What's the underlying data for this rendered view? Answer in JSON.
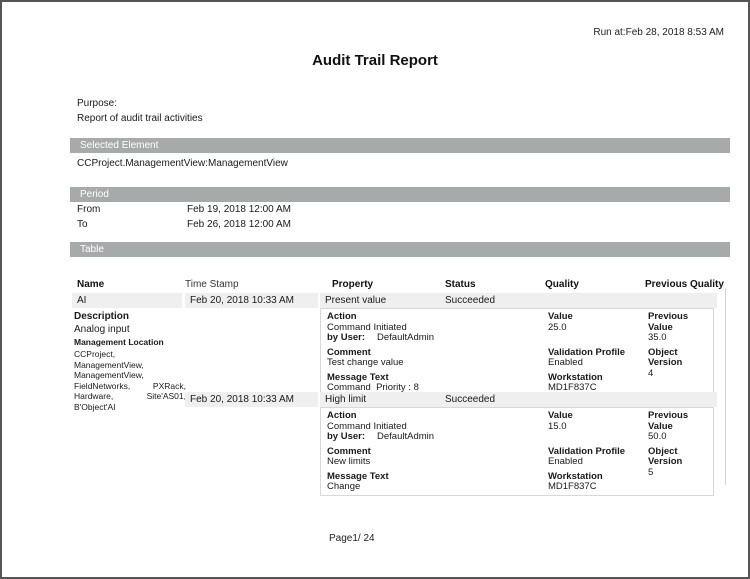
{
  "header": {
    "run_at": "Run at:Feb 28, 2018 8:53 AM",
    "title": "Audit Trail Report"
  },
  "purpose": {
    "label": "Purpose:",
    "text": "Report of audit trail activities"
  },
  "sections": {
    "selected_element": "Selected Element",
    "period": "Period",
    "table": "Table"
  },
  "selected_element_value": "CCProject.ManagementView:ManagementView",
  "period": {
    "from_label": "From",
    "from_value": "Feb 19, 2018 12:00 AM",
    "to_label": "To",
    "to_value": "Feb 26, 2018 12:00 AM"
  },
  "table": {
    "columns": {
      "name": "Name",
      "time_stamp": "Time Stamp",
      "property": "Property",
      "status": "Status",
      "quality": "Quality",
      "previous_quality": "Previous Quality"
    },
    "row": {
      "name": "AI",
      "description_label": "Description",
      "description": "Analog input",
      "management_location_label": "Management Location",
      "management_location": "CCProject, ManagementView, ManagementView, FieldNetworks, PXRack, Hardware, Site'AS01, B'Object'AI",
      "entries": [
        {
          "timestamp": "Feb 20, 2018 10:33 AM",
          "property": "Present value",
          "status": "Succeeded",
          "action_label": "Action",
          "action": "Command Initiated",
          "by_user_label": "by User:",
          "by_user": "DefaultAdmin",
          "comment_label": "Comment",
          "comment": "Test change value",
          "message_label": "Message Text",
          "message": "Command  Priority : 8",
          "value_label": "Value",
          "value": "25.0",
          "prev_value_label": "Previous Value",
          "prev_value": "35.0",
          "validation_label": "Validation Profile",
          "validation": "Enabled",
          "object_version_label": "Object Version",
          "object_version": "4",
          "workstation_label": "Workstation",
          "workstation": "MD1F837C"
        },
        {
          "timestamp": "Feb 20, 2018 10:33 AM",
          "property": "High limit",
          "status": "Succeeded",
          "action_label": "Action",
          "action": "Command Initiated",
          "by_user_label": "by User:",
          "by_user": "DefaultAdmin",
          "comment_label": "Comment",
          "comment": "New limits",
          "message_label": "Message Text",
          "message": "Change",
          "value_label": "Value",
          "value": "15.0",
          "prev_value_label": "Previous Value",
          "prev_value": "50.0",
          "validation_label": "Validation Profile",
          "validation": "Enabled",
          "object_version_label": "Object Version",
          "object_version": "5",
          "workstation_label": "Workstation",
          "workstation": "MD1F837C"
        }
      ]
    }
  },
  "footer": {
    "page": "Page1/ 24"
  },
  "colors": {
    "section_bar_bg": "#a7aaab",
    "section_bar_text": "#ffffff",
    "row_stripe_bg": "#efefef",
    "detail_box_border": "#d8d8d8",
    "page_border": "#555555"
  }
}
